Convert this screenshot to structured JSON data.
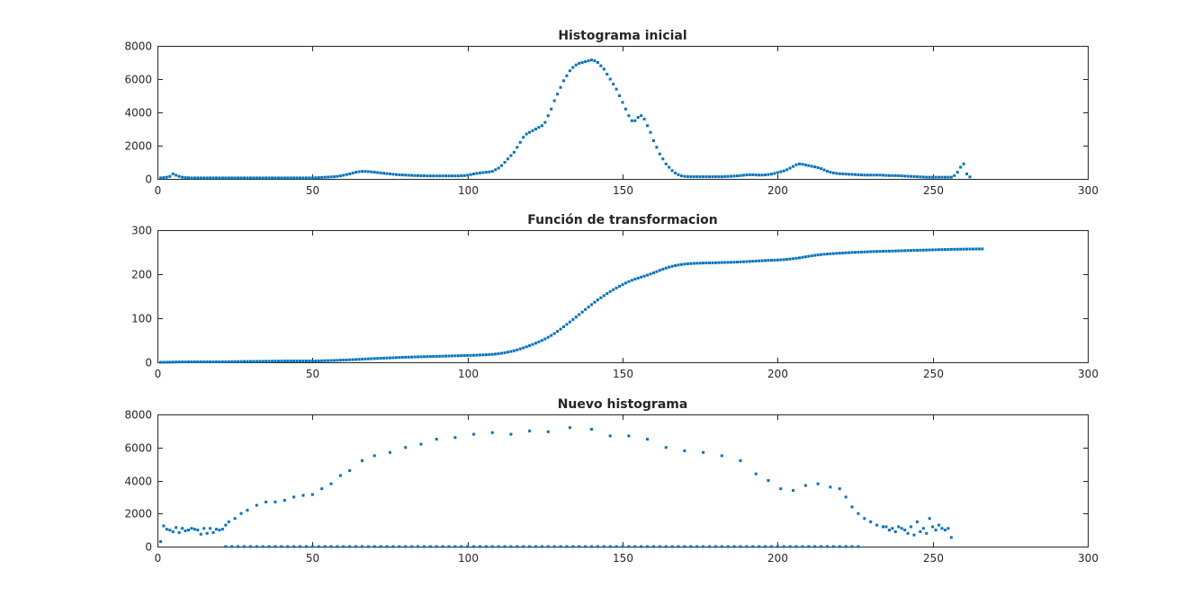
{
  "marker_color": "#0072bd",
  "chart_data": [
    {
      "type": "scatter",
      "title": "Histograma inicial",
      "xlabel": "",
      "ylabel": "",
      "xlim": [
        0,
        300
      ],
      "ylim": [
        0,
        8000
      ],
      "x_ticks": [
        0,
        50,
        100,
        150,
        200,
        250,
        300
      ],
      "y_ticks": [
        0,
        2000,
        4000,
        6000,
        8000
      ],
      "grid": false,
      "series": [
        {
          "values": [
            60,
            80,
            100,
            150,
            300,
            220,
            150,
            100,
            80,
            70,
            60,
            60,
            60,
            60,
            60,
            60,
            60,
            60,
            60,
            60,
            60,
            60,
            60,
            60,
            60,
            60,
            60,
            60,
            60,
            60,
            60,
            60,
            60,
            60,
            60,
            60,
            60,
            60,
            60,
            60,
            60,
            60,
            60,
            60,
            60,
            60,
            60,
            60,
            60,
            60,
            70,
            80,
            90,
            100,
            110,
            120,
            130,
            150,
            180,
            220,
            260,
            300,
            350,
            400,
            430,
            450,
            450,
            440,
            420,
            400,
            380,
            360,
            340,
            320,
            300,
            280,
            260,
            250,
            240,
            230,
            220,
            210,
            200,
            200,
            190,
            190,
            180,
            180,
            180,
            180,
            180,
            180,
            180,
            180,
            180,
            180,
            180,
            190,
            200,
            220,
            260,
            300,
            330,
            360,
            380,
            400,
            420,
            450,
            550,
            650,
            800,
            1000,
            1200,
            1400,
            1600,
            1900,
            2200,
            2500,
            2700,
            2800,
            2900,
            3000,
            3100,
            3200,
            3400,
            3800,
            4200,
            4700,
            5100,
            5500,
            5900,
            6200,
            6500,
            6700,
            6850,
            6950,
            7000,
            7050,
            7100,
            7150,
            7100,
            7000,
            6800,
            6600,
            6300,
            6000,
            5700,
            5400,
            5000,
            4600,
            4200,
            3800,
            3500,
            3500,
            3700,
            3800,
            3600,
            3200,
            2800,
            2300,
            1900,
            1500,
            1200,
            900,
            700,
            500,
            350,
            250,
            180,
            150,
            140,
            130,
            130,
            130,
            130,
            130,
            130,
            130,
            130,
            130,
            130,
            130,
            140,
            150,
            160,
            170,
            180,
            200,
            220,
            240,
            250,
            250,
            240,
            230,
            230,
            240,
            260,
            290,
            330,
            380,
            430,
            480,
            550,
            650,
            750,
            850,
            900,
            880,
            840,
            800,
            760,
            720,
            680,
            620,
            540,
            460,
            400,
            360,
            330,
            310,
            300,
            290,
            280,
            270,
            260,
            250,
            240,
            230,
            230,
            230,
            230,
            230,
            230,
            220,
            210,
            200,
            200,
            200,
            190,
            180,
            170,
            160,
            150,
            140,
            130,
            120,
            110,
            100,
            100,
            100,
            100,
            100,
            100,
            100,
            100,
            100,
            200,
            400,
            700,
            900,
            300,
            120
          ]
        }
      ]
    },
    {
      "type": "scatter",
      "title": "Función de transformacion",
      "xlabel": "",
      "ylabel": "",
      "xlim": [
        0,
        300
      ],
      "ylim": [
        0,
        300
      ],
      "x_ticks": [
        0,
        50,
        100,
        150,
        200,
        250,
        300
      ],
      "y_ticks": [
        0,
        100,
        200,
        300
      ],
      "grid": false,
      "series": [
        {
          "values": [
            0.05,
            0.1,
            0.2,
            0.3,
            0.5,
            0.7,
            0.8,
            0.85,
            0.9,
            1,
            1,
            1,
            1,
            1,
            1,
            1,
            1,
            1,
            1,
            1,
            1.1,
            1.2,
            1.3,
            1.4,
            1.5,
            1.6,
            1.7,
            1.8,
            1.9,
            2,
            2.05,
            2.1,
            2.15,
            2.2,
            2.3,
            2.4,
            2.5,
            2.6,
            2.7,
            2.8,
            2.9,
            3,
            3,
            3,
            3,
            3,
            3,
            3,
            3,
            3,
            3,
            3.2,
            3.4,
            3.6,
            3.8,
            4,
            4.2,
            4.5,
            4.8,
            5,
            5.3,
            5.7,
            6,
            6.3,
            6.6,
            7,
            7.4,
            7.8,
            8.2,
            8.5,
            8.8,
            9.1,
            9.4,
            9.7,
            10,
            10.3,
            10.6,
            10.9,
            11.2,
            11.5,
            11.7,
            11.9,
            12.1,
            12.3,
            12.5,
            12.7,
            12.9,
            13.1,
            13.3,
            13.5,
            13.7,
            13.9,
            14.1,
            14.3,
            14.5,
            14.7,
            14.9,
            15.1,
            15.3,
            15.5,
            15.7,
            15.9,
            16.2,
            16.5,
            16.8,
            17.1,
            17.5,
            18,
            18.7,
            19.5,
            20.5,
            21.7,
            23,
            24.5,
            26.2,
            28.2,
            30.4,
            32.7,
            35.2,
            37.8,
            40.5,
            43.4,
            46.4,
            49.6,
            53,
            56.8,
            60.9,
            65.4,
            70.2,
            75.3,
            80.6,
            86,
            91.5,
            97.1,
            102.7,
            108.4,
            114.1,
            119.8,
            125.4,
            130.9,
            136.3,
            141.5,
            146.5,
            151.3,
            156,
            160.5,
            164.7,
            168.7,
            172.6,
            176.3,
            179.9,
            183.2,
            186.1,
            188.8,
            191.2,
            193.4,
            195.6,
            197.9,
            200.4,
            203.1,
            205.9,
            208.7,
            211.3,
            213.8,
            216,
            217.9,
            219.6,
            220.9,
            222,
            222.9,
            223.6,
            224.1,
            224.5,
            224.8,
            225.1,
            225.3,
            225.5,
            225.7,
            225.8,
            226,
            226.2,
            226.4,
            226.6,
            226.8,
            227,
            227.3,
            227.6,
            227.9,
            228.2,
            228.6,
            229,
            229.4,
            229.8,
            230.2,
            230.6,
            231,
            231.3,
            231.6,
            231.9,
            232.2,
            232.6,
            233.1,
            233.7,
            234.4,
            235.2,
            236.1,
            237.1,
            238.2,
            239.4,
            240.6,
            241.7,
            242.8,
            243.7,
            244.5,
            245.2,
            245.8,
            246.3,
            246.8,
            247.3,
            247.7,
            248.1,
            248.5,
            248.9,
            249.3,
            249.6,
            249.9,
            250.2,
            250.5,
            250.8,
            251.1,
            251.4,
            251.6,
            251.8,
            252,
            252.2,
            252.4,
            252.6,
            252.8,
            253,
            253.2,
            253.4,
            253.6,
            253.8,
            254,
            254.2,
            254.4,
            254.6,
            254.8,
            255,
            255.2,
            255.4,
            255.6,
            255.8,
            256,
            256.2,
            256.4,
            256.5,
            256.6,
            256.7,
            256.8,
            256.9,
            257,
            257.1,
            257.2,
            257.3,
            257.4
          ]
        }
      ]
    },
    {
      "type": "scatter",
      "title": "Nuevo histograma",
      "xlabel": "",
      "ylabel": "",
      "xlim": [
        0,
        300
      ],
      "ylim": [
        0,
        8000
      ],
      "x_ticks": [
        0,
        50,
        100,
        150,
        200,
        250,
        300
      ],
      "y_ticks": [
        0,
        2000,
        4000,
        6000,
        8000
      ],
      "grid": false,
      "series": [
        {
          "x": [
            1,
            2,
            3,
            4,
            5,
            6,
            7,
            8,
            9,
            10,
            11,
            12,
            13,
            14,
            15,
            16,
            17,
            18,
            19,
            20,
            21,
            22,
            23,
            25,
            27,
            29,
            32,
            35,
            38,
            41,
            44,
            47,
            50,
            53,
            56,
            59,
            62,
            66,
            70,
            75,
            80,
            85,
            90,
            96,
            102,
            108,
            114,
            120,
            126,
            133,
            140,
            146,
            152,
            158,
            164,
            170,
            176,
            182,
            188,
            193,
            197,
            201,
            205,
            209,
            213,
            217,
            220,
            222,
            224,
            226,
            228,
            230,
            232,
            234,
            235,
            236,
            237,
            238,
            239,
            240,
            241,
            242,
            243,
            244,
            245,
            246,
            247,
            248,
            249,
            250,
            251,
            252,
            253,
            254,
            255,
            256
          ],
          "y": [
            300,
            1250,
            1050,
            1000,
            900,
            1150,
            850,
            1100,
            950,
            1000,
            1100,
            1050,
            1000,
            750,
            1100,
            800,
            1100,
            850,
            1050,
            1000,
            1050,
            1300,
            1500,
            1700,
            2000,
            2200,
            2500,
            2700,
            2700,
            2800,
            3000,
            3100,
            3150,
            3500,
            3800,
            4300,
            4600,
            5200,
            5500,
            5700,
            6000,
            6200,
            6500,
            6600,
            6800,
            6900,
            6800,
            7000,
            6950,
            7200,
            7100,
            6700,
            6700,
            6500,
            6000,
            5800,
            5700,
            5500,
            5200,
            4400,
            4000,
            3500,
            3400,
            3700,
            3800,
            3600,
            3500,
            3000,
            2400,
            2000,
            1700,
            1500,
            1300,
            1200,
            1200,
            1000,
            1100,
            900,
            1200,
            1100,
            1000,
            800,
            1200,
            700,
            1500,
            900,
            1100,
            800,
            1700,
            1200,
            1000,
            1300,
            1100,
            1000,
            1100,
            550
          ]
        },
        {
          "x": [
            22,
            24,
            26,
            28,
            30,
            32,
            34,
            36,
            38,
            40,
            42,
            44,
            46,
            48,
            50,
            52,
            54,
            56,
            58,
            60,
            62,
            64,
            66,
            68,
            70,
            72,
            74,
            76,
            78,
            80,
            82,
            84,
            86,
            88,
            90,
            92,
            94,
            96,
            98,
            100,
            102,
            104,
            106,
            108,
            110,
            112,
            114,
            116,
            118,
            120,
            122,
            124,
            126,
            128,
            130,
            132,
            134,
            136,
            138,
            140,
            142,
            144,
            146,
            148,
            150,
            152,
            154,
            156,
            158,
            160,
            162,
            164,
            166,
            168,
            170,
            172,
            174,
            176,
            178,
            180,
            182,
            184,
            186,
            188,
            190,
            192,
            194,
            196,
            198,
            200,
            202,
            204,
            206,
            208,
            210,
            212,
            214,
            216,
            218,
            220,
            222,
            224,
            226
          ],
          "y": [
            0,
            0,
            0,
            0,
            0,
            0,
            0,
            0,
            0,
            0,
            0,
            0,
            0,
            0,
            0,
            0,
            0,
            0,
            0,
            0,
            0,
            0,
            0,
            0,
            0,
            0,
            0,
            0,
            0,
            0,
            0,
            0,
            0,
            0,
            0,
            0,
            0,
            0,
            0,
            0,
            0,
            0,
            0,
            0,
            0,
            0,
            0,
            0,
            0,
            0,
            0,
            0,
            0,
            0,
            0,
            0,
            0,
            0,
            0,
            0,
            0,
            0,
            0,
            0,
            0,
            0,
            0,
            0,
            0,
            0,
            0,
            0,
            0,
            0,
            0,
            0,
            0,
            0,
            0,
            0,
            0,
            0,
            0,
            0,
            0,
            0,
            0,
            0,
            0,
            0,
            0,
            0,
            0,
            0,
            0,
            0,
            0,
            0,
            0,
            0,
            0,
            0,
            0
          ]
        }
      ]
    }
  ]
}
